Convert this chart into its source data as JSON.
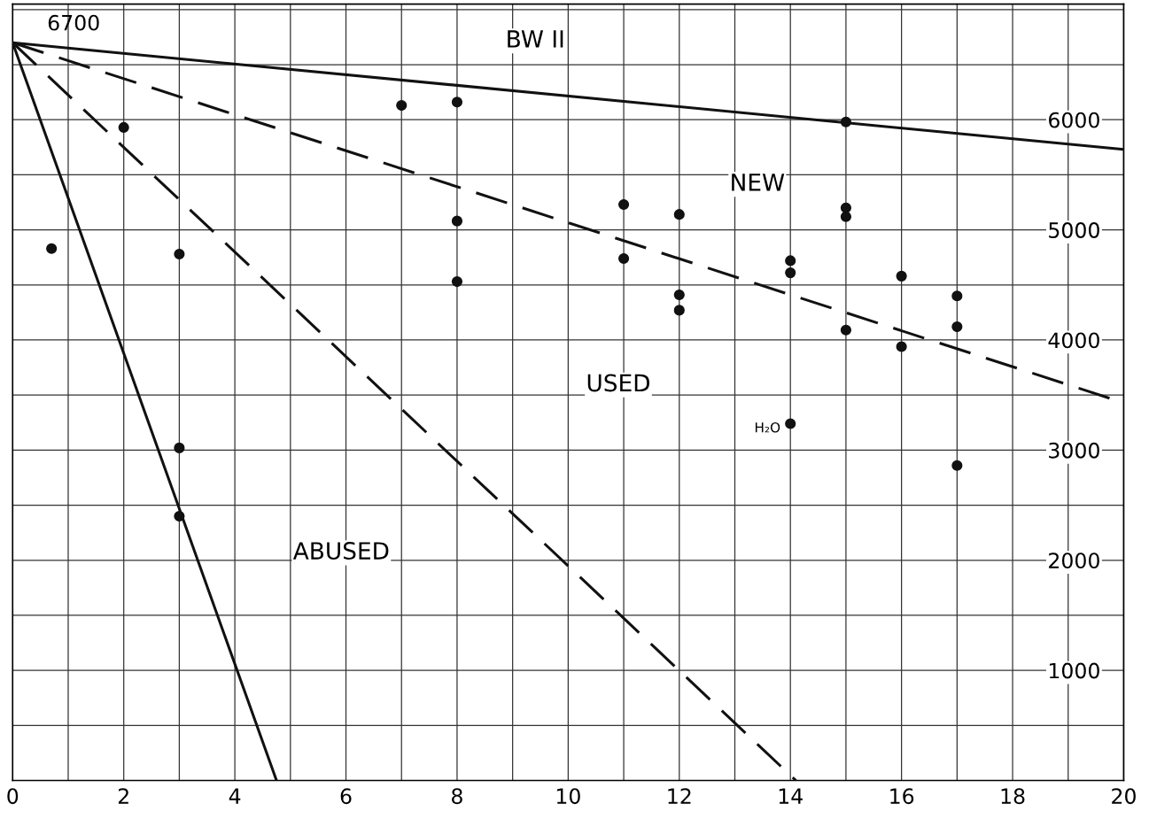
{
  "chart_data": {
    "type": "scatter",
    "xlim": [
      0,
      20
    ],
    "ylim": [
      0,
      7050
    ],
    "xticks": [
      0,
      {
        "value": 1,
        "label": null
      },
      2,
      {
        "value": 3,
        "label": null
      },
      4,
      {
        "value": 5,
        "label": null
      },
      6,
      {
        "value": 7,
        "label": null
      },
      8,
      {
        "value": 9,
        "label": null
      },
      10,
      {
        "value": 11,
        "label": null
      },
      12,
      {
        "value": 13,
        "label": null
      },
      14,
      {
        "value": 15,
        "label": null
      },
      16,
      {
        "value": 17,
        "label": null
      },
      18,
      {
        "value": 19,
        "label": null
      },
      20
    ],
    "yticks": [
      {
        "value": 500,
        "label": null
      },
      1000,
      {
        "value": 1500,
        "label": null
      },
      2000,
      {
        "value": 2500,
        "label": null
      },
      3000,
      {
        "value": 3500,
        "label": null
      },
      4000,
      {
        "value": 4500,
        "label": null
      },
      5000,
      {
        "value": 5500,
        "label": null
      },
      6000,
      {
        "value": 6500,
        "label": null
      },
      {
        "value": 7000,
        "label": null
      }
    ],
    "grid": true,
    "series": [
      {
        "type": "line",
        "color": "#111111",
        "line_style": "solid",
        "x": [
          0,
          20
        ],
        "values": [
          6700,
          5730
        ]
      },
      {
        "type": "line",
        "color": "#111111",
        "line_style": "dashed",
        "x": [
          0,
          20
        ],
        "values": [
          6700,
          3430
        ]
      },
      {
        "type": "line",
        "color": "#111111",
        "line_style": "dashed",
        "x": [
          0,
          14.1
        ],
        "values": [
          6700,
          0
        ]
      },
      {
        "type": "line",
        "color": "#111111",
        "line_style": "solid",
        "x": [
          0,
          4.75
        ],
        "values": [
          6700,
          0
        ]
      },
      {
        "color": "#111111",
        "marker": "circle",
        "x": [
          0.7,
          2,
          3,
          3,
          3,
          7,
          8,
          8,
          8,
          11,
          11,
          12,
          12,
          12,
          14,
          14,
          14,
          15,
          15,
          15,
          15,
          16,
          16,
          17,
          17,
          17
        ],
        "values": [
          4830,
          5930,
          4780,
          3020,
          2400,
          6130,
          6160,
          5080,
          4530,
          5230,
          4740,
          5140,
          4410,
          4270,
          4720,
          4610,
          3240,
          5980,
          5200,
          5120,
          4090,
          4580,
          3940,
          4400,
          4120,
          2860
        ]
      }
    ],
    "annotations": [
      {
        "text": "6700",
        "x": 0,
        "y": 6700
      },
      "BW II",
      "NEW",
      "USED",
      "ABUSED",
      {
        "text": "H₂O",
        "x": 14,
        "y": 3240
      }
    ]
  }
}
